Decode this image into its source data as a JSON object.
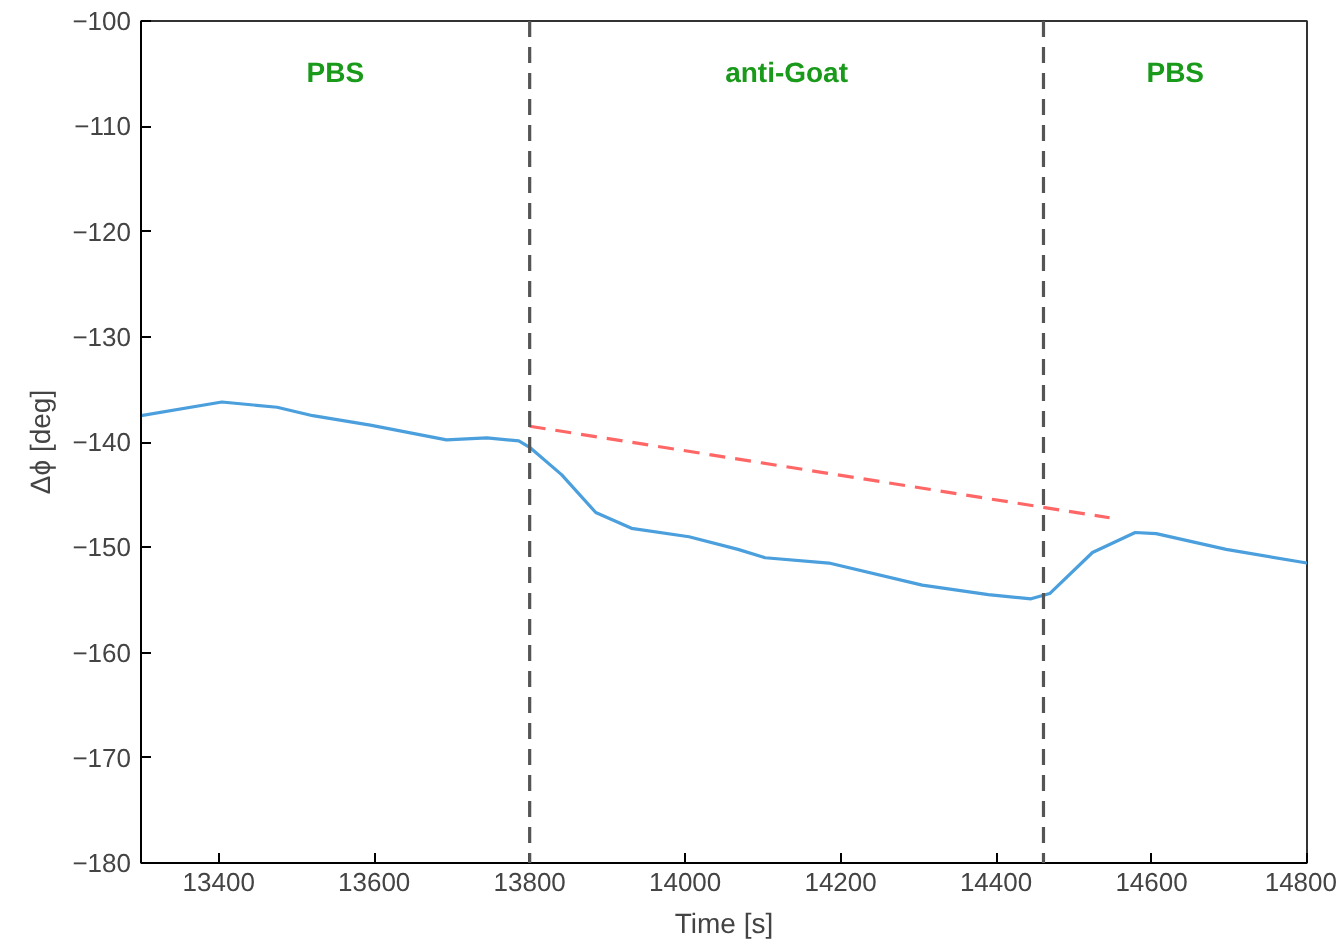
{
  "chart_data": {
    "type": "line",
    "xlabel": "Time [s]",
    "ylabel": "Δϕ [deg]",
    "xlim": [
      13300,
      14800
    ],
    "ylim": [
      -180,
      -100
    ],
    "xticks": [
      13400,
      13600,
      13800,
      14000,
      14200,
      14400,
      14600,
      14800
    ],
    "yticks": [
      -180,
      -170,
      -160,
      -150,
      -140,
      -130,
      -120,
      -110,
      -100
    ],
    "grid": false,
    "series": [
      {
        "color": "#4a9fdc",
        "x": [
          13300,
          13404,
          13475,
          13521,
          13595,
          13693,
          13745,
          13786,
          13800,
          13841,
          13885,
          13931,
          14005,
          14068,
          14103,
          14185,
          14305,
          14390,
          14445,
          14469,
          14524,
          14579,
          14606,
          14696,
          14800
        ],
        "values": [
          -137.5,
          -136.2,
          -136.7,
          -137.5,
          -138.4,
          -139.8,
          -139.6,
          -139.9,
          -140.5,
          -143.1,
          -146.7,
          -148.2,
          -149.0,
          -150.2,
          -151.0,
          -151.5,
          -153.6,
          -154.5,
          -154.9,
          -154.4,
          -150.5,
          -148.6,
          -148.7,
          -150.2,
          -151.5
        ]
      },
      {
        "color": "#ff6666",
        "line_style": "dashed",
        "x": [
          13800,
          14546
        ],
        "values": [
          -138.5,
          -147.2
        ]
      }
    ],
    "ref_lines": [
      {
        "axis": "x",
        "value": 13800,
        "color": "#555555",
        "line_style": "dashed"
      },
      {
        "axis": "x",
        "value": 14461,
        "color": "#555555",
        "line_style": "dashed"
      }
    ],
    "annotations": [
      "PBS",
      "anti-Goat",
      "PBS"
    ]
  }
}
